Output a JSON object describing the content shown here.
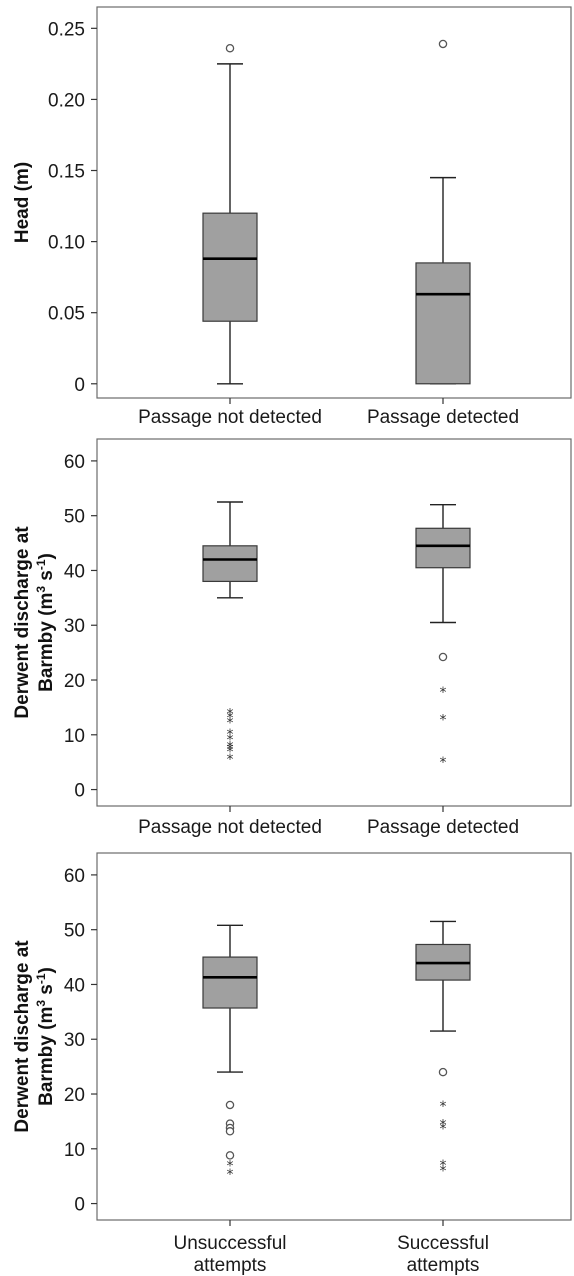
{
  "chart_data": [
    {
      "type": "boxplot",
      "ylabel": "Head (m)",
      "ylim": [
        -0.01,
        0.265
      ],
      "yticks": [
        "0",
        "0.05",
        "0.10",
        "0.15",
        "0.20",
        "0.25"
      ],
      "ytick_values": [
        0,
        0.05,
        0.1,
        0.15,
        0.2,
        0.25
      ],
      "categories": [
        "Passage not detected",
        "Passage detected"
      ],
      "boxes": [
        {
          "whisker_low": 0,
          "q1": 0.044,
          "median": 0.088,
          "q3": 0.12,
          "whisker_high": 0.225,
          "outliers": [
            0.236
          ],
          "extremes": []
        },
        {
          "whisker_low": 0,
          "q1": 0,
          "median": 0.063,
          "q3": 0.085,
          "whisker_high": 0.145,
          "outliers": [
            0.239
          ],
          "extremes": []
        }
      ]
    },
    {
      "type": "boxplot",
      "ylabel": "Derwent discharge at Barmby (m³ s⁻¹)",
      "ylabel_lines": [
        "Derwent discharge at",
        "Barmby (m",
        "3",
        " s",
        "-1",
        ")"
      ],
      "ylim": [
        -3,
        64
      ],
      "yticks": [
        "0",
        "10",
        "20",
        "30",
        "40",
        "50",
        "60"
      ],
      "ytick_values": [
        0,
        10,
        20,
        30,
        40,
        50,
        60
      ],
      "categories": [
        "Passage not detected",
        "Passage detected"
      ],
      "boxes": [
        {
          "whisker_low": 35,
          "q1": 38,
          "median": 42,
          "q3": 44.5,
          "whisker_high": 52.5,
          "outliers": [],
          "extremes": [
            14.1,
            13.3,
            12.4,
            10.3,
            9.3,
            8.0,
            7.6,
            7.1,
            5.8
          ]
        },
        {
          "whisker_low": 30.5,
          "q1": 40.5,
          "median": 44.5,
          "q3": 47.7,
          "whisker_high": 52,
          "outliers": [
            24.2
          ],
          "extremes": [
            18,
            13,
            5.2
          ]
        }
      ]
    },
    {
      "type": "boxplot",
      "ylabel": "Derwent discharge at Barmby (m³ s⁻¹)",
      "ylabel_lines": [
        "Derwent discharge at",
        "Barmby (m",
        "3",
        " s",
        "-1",
        ")"
      ],
      "ylim": [
        -3,
        64
      ],
      "yticks": [
        "0",
        "10",
        "20",
        "30",
        "40",
        "50",
        "60"
      ],
      "ytick_values": [
        0,
        10,
        20,
        30,
        40,
        50,
        60
      ],
      "categories": [
        "Unsuccessful attempts",
        "Successful attempts"
      ],
      "category_lines": [
        [
          "Unsuccessful",
          "attempts"
        ],
        [
          "Successful",
          "attempts"
        ]
      ],
      "boxes": [
        {
          "whisker_low": 24,
          "q1": 35.7,
          "median": 41.3,
          "q3": 45,
          "whisker_high": 50.8,
          "outliers": [
            18,
            14.6,
            13.8,
            13.2,
            8.8
          ],
          "extremes": [
            7.1,
            5.6
          ]
        },
        {
          "whisker_low": 31.5,
          "q1": 40.8,
          "median": 43.9,
          "q3": 47.3,
          "whisker_high": 51.5,
          "outliers": [
            24
          ],
          "extremes": [
            18,
            14.6,
            13.9,
            7.2,
            6.2
          ]
        }
      ]
    }
  ]
}
